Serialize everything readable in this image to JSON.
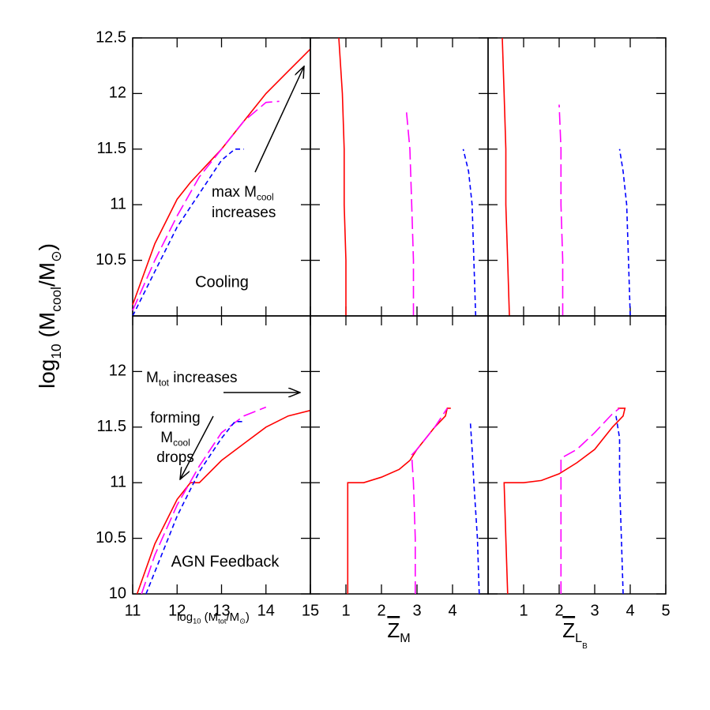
{
  "chart_data": [
    {
      "type": "line",
      "xlim": [
        11,
        15
      ],
      "ylim": [
        10,
        12.5
      ],
      "xticks": [
        11,
        12,
        13,
        14,
        15
      ],
      "xtick_labels": false,
      "yticks": [
        10.5,
        11,
        11.5,
        12,
        12.5
      ],
      "ytick_labels": true,
      "y_label": [
        {
          "text": "log"
        },
        {
          "text": "10",
          "sub": 1
        },
        {
          "text": " (M"
        },
        {
          "text": "cool",
          "sub": 1
        },
        {
          "text": "/M"
        },
        {
          "text": "⊙",
          "sub": 1
        },
        {
          "text": ")"
        }
      ],
      "label": "Cooling",
      "annotations": [
        {
          "parts": [
            {
              "text": "max M"
            },
            {
              "text": "cool",
              "sub": 1
            }
          ]
        },
        {
          "parts": [
            {
              "text": "increases"
            }
          ]
        }
      ],
      "series": [
        {
          "color": "#ff0000",
          "style": "solid",
          "x": [
            11,
            11.5,
            12,
            12.3,
            13,
            13.5,
            14,
            14.5,
            15
          ],
          "values": [
            10.1,
            10.65,
            11.05,
            11.2,
            11.5,
            11.75,
            12.0,
            12.2,
            12.4
          ]
        },
        {
          "color": "#ff00ff",
          "style": "long-dash",
          "x": [
            11,
            11.5,
            12,
            12.5,
            13,
            13.5,
            14,
            14.3
          ],
          "values": [
            10.05,
            10.5,
            10.9,
            11.25,
            11.5,
            11.75,
            11.92,
            11.93
          ]
        },
        {
          "color": "#0000ff",
          "style": "dash",
          "x": [
            11,
            11.5,
            12,
            12.5,
            13,
            13.3,
            13.5
          ],
          "values": [
            10.0,
            10.4,
            10.8,
            11.1,
            11.4,
            11.5,
            11.5
          ]
        }
      ]
    },
    {
      "type": "line",
      "xlim": [
        0,
        5
      ],
      "ylim": [
        10,
        12.5
      ],
      "xticks": [
        1,
        2,
        3,
        4
      ],
      "xtick_labels": false,
      "yticks": [
        10.5,
        11,
        11.5,
        12,
        12.5
      ],
      "ytick_labels": false,
      "series": [
        {
          "color": "#ff0000",
          "style": "solid",
          "x": [
            1.0,
            1.0,
            0.95,
            0.95,
            0.9,
            0.8
          ],
          "values": [
            10,
            10.5,
            11,
            11.5,
            12,
            12.5
          ]
        },
        {
          "color": "#ff00ff",
          "style": "long-dash",
          "x": [
            2.9,
            2.9,
            2.85,
            2.8,
            2.7
          ],
          "values": [
            10,
            10.5,
            11,
            11.5,
            11.85
          ]
        },
        {
          "color": "#0000ff",
          "style": "dash",
          "x": [
            4.65,
            4.6,
            4.55,
            4.45,
            4.3
          ],
          "values": [
            10,
            10.5,
            11,
            11.3,
            11.5
          ]
        }
      ]
    },
    {
      "type": "line",
      "xlim": [
        0,
        5
      ],
      "ylim": [
        10,
        12.5
      ],
      "xticks": [
        1,
        2,
        3,
        4,
        5
      ],
      "xtick_labels": false,
      "yticks": [
        10.5,
        11,
        11.5,
        12,
        12.5
      ],
      "ytick_labels": false,
      "series": [
        {
          "color": "#ff0000",
          "style": "solid",
          "x": [
            0.6,
            0.55,
            0.5,
            0.5,
            0.45,
            0.4
          ],
          "values": [
            10,
            10.5,
            11,
            11.5,
            12,
            12.5
          ]
        },
        {
          "color": "#ff00ff",
          "style": "long-dash",
          "x": [
            2.1,
            2.1,
            2.05,
            2.05,
            2.0
          ],
          "values": [
            10,
            10.5,
            11,
            11.5,
            11.9
          ]
        },
        {
          "color": "#0000ff",
          "style": "dash",
          "x": [
            4.0,
            3.95,
            3.9,
            3.8,
            3.7
          ],
          "values": [
            10,
            10.5,
            11,
            11.3,
            11.5
          ]
        }
      ]
    },
    {
      "type": "line",
      "xlim": [
        11,
        15
      ],
      "ylim": [
        10,
        12.5
      ],
      "xticks": [
        11,
        12,
        13,
        14,
        15
      ],
      "xtick_labels": true,
      "yticks": [
        10,
        10.5,
        11,
        11.5,
        12
      ],
      "ytick_labels": true,
      "x_label": [
        {
          "text": "log"
        },
        {
          "text": "10",
          "sub": 1
        },
        {
          "text": " (M"
        },
        {
          "text": "tot",
          "sub": 1
        },
        {
          "text": "/M"
        },
        {
          "text": "⊙",
          "sub": 1
        },
        {
          "text": ")"
        }
      ],
      "label": "AGN Feedback",
      "annotations": [
        {
          "parts": [
            {
              "text": "M"
            },
            {
              "text": "tot",
              "sub": 1
            },
            {
              "text": " increases"
            }
          ]
        },
        {
          "parts": [
            {
              "text": "forming"
            }
          ]
        },
        {
          "parts": [
            {
              "text": "M"
            },
            {
              "text": "cool",
              "sub": 1
            }
          ]
        },
        {
          "parts": [
            {
              "text": "drops"
            }
          ]
        }
      ],
      "series": [
        {
          "color": "#ff0000",
          "style": "solid",
          "x": [
            11.1,
            11.5,
            12,
            12.3,
            12.5,
            13,
            13.5,
            14,
            14.5,
            15
          ],
          "values": [
            10,
            10.45,
            10.85,
            11.0,
            11.0,
            11.2,
            11.35,
            11.5,
            11.6,
            11.65
          ]
        },
        {
          "color": "#ff00ff",
          "style": "long-dash",
          "x": [
            11.2,
            11.5,
            12,
            12.5,
            13,
            13.5,
            14
          ],
          "values": [
            10,
            10.35,
            10.8,
            11.15,
            11.45,
            11.6,
            11.68
          ]
        },
        {
          "color": "#0000ff",
          "style": "dash",
          "x": [
            11.3,
            11.7,
            12,
            12.5,
            13,
            13.3,
            13.5
          ],
          "values": [
            10,
            10.4,
            10.7,
            11.1,
            11.4,
            11.55,
            11.55
          ]
        }
      ]
    },
    {
      "type": "line",
      "xlim": [
        0,
        5
      ],
      "ylim": [
        10,
        12.5
      ],
      "xticks": [
        1,
        2,
        3,
        4
      ],
      "xtick_labels": true,
      "yticks": [
        10,
        10.5,
        11,
        11.5,
        12
      ],
      "ytick_labels": false,
      "x_label": [
        {
          "text": "Z",
          "overline": true
        },
        {
          "text": "M",
          "sub": 1
        }
      ],
      "series": [
        {
          "color": "#ff0000",
          "style": "solid",
          "x": [
            1.05,
            1.05,
            1.05,
            1.5,
            2,
            2.5,
            2.8,
            3.0,
            3.5,
            3.8,
            3.85,
            3.95
          ],
          "values": [
            10,
            10.5,
            11,
            11,
            11.05,
            11.12,
            11.2,
            11.3,
            11.5,
            11.6,
            11.67,
            11.67
          ]
        },
        {
          "color": "#ff00ff",
          "style": "long-dash",
          "x": [
            2.95,
            2.95,
            2.9,
            2.85,
            3.0,
            3.5,
            3.85
          ],
          "values": [
            10,
            10.5,
            11,
            11.25,
            11.3,
            11.5,
            11.67
          ]
        },
        {
          "color": "#0000ff",
          "style": "dash",
          "x": [
            4.75,
            4.7,
            4.6,
            4.55,
            4.5
          ],
          "values": [
            10,
            10.5,
            11,
            11.3,
            11.55
          ]
        }
      ]
    },
    {
      "type": "line",
      "xlim": [
        0,
        5
      ],
      "ylim": [
        10,
        12.5
      ],
      "xticks": [
        1,
        2,
        3,
        4,
        5
      ],
      "xtick_labels": true,
      "yticks": [
        10,
        10.5,
        11,
        11.5,
        12
      ],
      "ytick_labels": false,
      "x_label": [
        {
          "text": "Z",
          "overline": true
        },
        {
          "text": "L",
          "sub": 1
        },
        {
          "text": "B",
          "sub": 2
        }
      ],
      "series": [
        {
          "color": "#ff0000",
          "style": "solid",
          "x": [
            0.55,
            0.5,
            0.45,
            1,
            1.5,
            2,
            2.5,
            3,
            3.5,
            3.8,
            3.85,
            3.65
          ],
          "values": [
            10,
            10.5,
            11,
            11,
            11.02,
            11.08,
            11.18,
            11.3,
            11.5,
            11.6,
            11.67,
            11.67
          ]
        },
        {
          "color": "#ff00ff",
          "style": "long-dash",
          "x": [
            2.05,
            2.05,
            2.05,
            2.05,
            2.5,
            3,
            3.5,
            3.7
          ],
          "values": [
            10,
            10.5,
            11,
            11.22,
            11.3,
            11.45,
            11.62,
            11.67
          ]
        },
        {
          "color": "#0000ff",
          "style": "dash",
          "x": [
            3.8,
            3.75,
            3.7,
            3.7,
            3.6
          ],
          "values": [
            10,
            10.5,
            11,
            11.4,
            11.6
          ]
        }
      ]
    }
  ]
}
